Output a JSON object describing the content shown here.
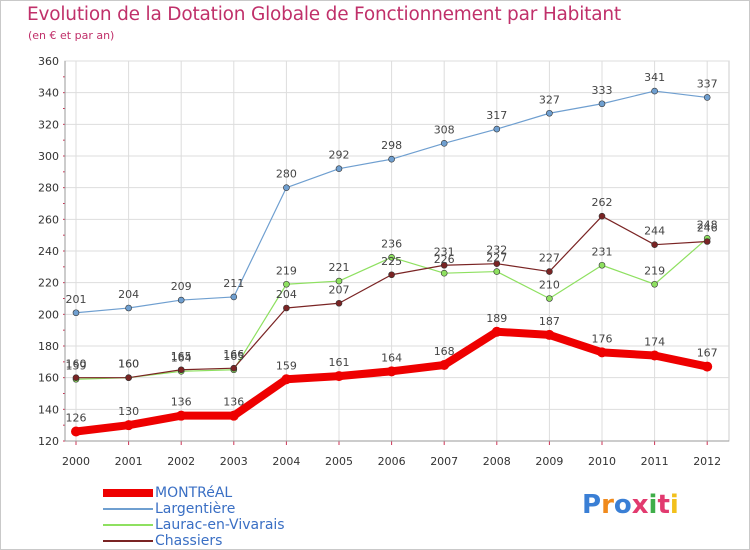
{
  "title": "Evolution de la Dotation Globale de Fonctionnement par Habitant",
  "subtitle": "(en € et par an)",
  "logo_text": "Proxiti",
  "chart_data": {
    "type": "line",
    "title": "Evolution de la Dotation Globale de Fonctionnement par Habitant",
    "subtitle": "(en € et par an)",
    "xlabel": "",
    "ylabel": "",
    "ylim": [
      120,
      360
    ],
    "yticks": [
      120,
      140,
      160,
      180,
      200,
      220,
      240,
      260,
      280,
      300,
      320,
      340,
      360
    ],
    "grid": true,
    "legend_position": "bottom-left",
    "categories": [
      "2000",
      "2001",
      "2002",
      "2003",
      "2004",
      "2005",
      "2006",
      "2007",
      "2008",
      "2009",
      "2010",
      "2011",
      "2012"
    ],
    "series": [
      {
        "name": "MONTRéAL",
        "color": "#ee0000",
        "values": [
          126,
          130,
          136,
          136,
          159,
          161,
          164,
          168,
          189,
          187,
          176,
          174,
          167
        ]
      },
      {
        "name": "Largentière",
        "color": "#6f9fd0",
        "values": [
          201,
          204,
          209,
          211,
          280,
          292,
          298,
          308,
          317,
          327,
          333,
          341,
          337
        ]
      },
      {
        "name": "Laurac-en-Vivarais",
        "color": "#8ee060",
        "values": [
          159,
          160,
          164,
          165,
          219,
          221,
          236,
          226,
          227,
          210,
          231,
          219,
          248
        ]
      },
      {
        "name": "Chassiers",
        "color": "#7a2424",
        "values": [
          160,
          160,
          165,
          166,
          204,
          207,
          225,
          231,
          232,
          227,
          262,
          244,
          246
        ]
      }
    ]
  }
}
